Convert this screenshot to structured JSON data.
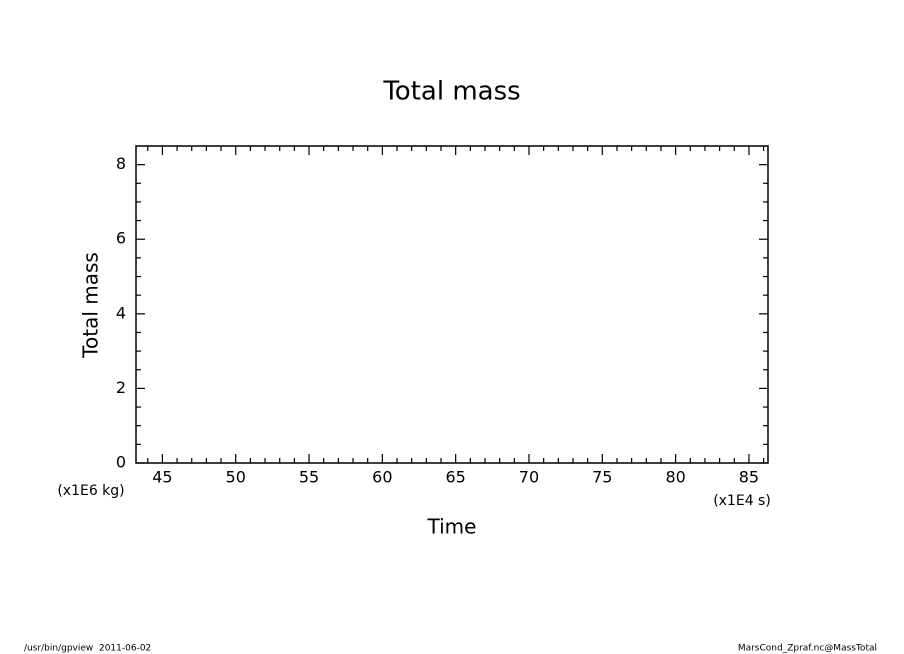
{
  "chart_data": {
    "type": "line",
    "title": "Total mass",
    "x_label": "Time",
    "y_label": "Total mass",
    "x_unit_label": "(x1E4 s)",
    "y_unit_label": "(x1E6 kg)",
    "series": [],
    "xlim": [
      43.2,
      86.3
    ],
    "xticks": [
      45,
      50,
      55,
      60,
      65,
      70,
      75,
      80,
      85
    ],
    "xminorticks": [
      44,
      46,
      47,
      48,
      49,
      51,
      52,
      53,
      54,
      56,
      57,
      58,
      59,
      61,
      62,
      63,
      64,
      66,
      67,
      68,
      69,
      71,
      72,
      73,
      74,
      76,
      77,
      78,
      79,
      81,
      82,
      83,
      84,
      86
    ],
    "ylim": [
      0,
      8.5
    ],
    "yticks": [
      0,
      2,
      4,
      6,
      8
    ],
    "yminorticks": [
      0.5,
      1,
      1.5,
      2.5,
      3,
      3.5,
      4.5,
      5,
      5.5,
      6.5,
      7,
      7.5
    ],
    "grid": false
  },
  "footer": {
    "left": "/usr/bin/gpview  2011-06-02",
    "right": "MarsCond_Zpraf.nc@MassTotal"
  }
}
